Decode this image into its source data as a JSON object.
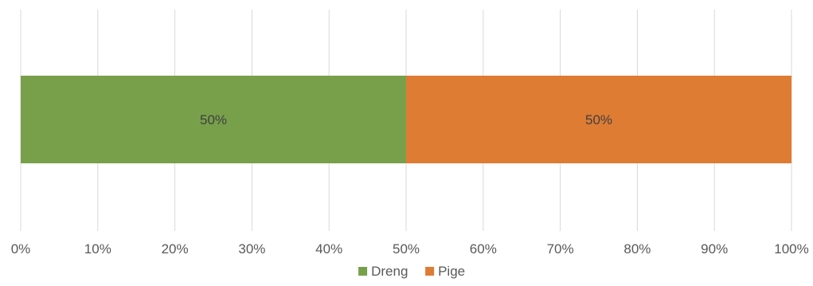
{
  "chart_data": {
    "type": "bar",
    "orientation": "horizontal",
    "stacked": "percent",
    "categories": [
      ""
    ],
    "series": [
      {
        "name": "Dreng",
        "values": [
          50
        ],
        "label": "50%",
        "color": "#78A04B"
      },
      {
        "name": "Pige",
        "values": [
          50
        ],
        "label": "50%",
        "color": "#DE7C34"
      }
    ],
    "x_ticks": [
      "0%",
      "10%",
      "20%",
      "30%",
      "40%",
      "50%",
      "60%",
      "70%",
      "80%",
      "90%",
      "100%"
    ],
    "xlim": [
      0,
      100
    ],
    "grid": true,
    "legend": "bottom",
    "title": "",
    "xlabel": "",
    "ylabel": ""
  },
  "colors": {
    "grid": "#D9D9D9",
    "text": "#595959",
    "label_text": "#404040"
  }
}
